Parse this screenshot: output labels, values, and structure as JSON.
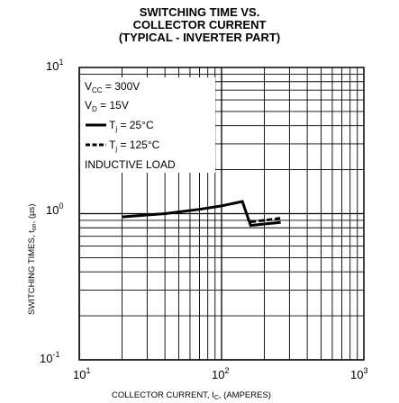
{
  "title_lines": [
    "SWITCHING TIME VS.",
    "COLLECTOR CURRENT",
    "(TYPICAL - INVERTER PART)"
  ],
  "chart_data": {
    "type": "line",
    "x_scale": "log",
    "y_scale": "log",
    "xlim": [
      10,
      1000
    ],
    "ylim": [
      0.1,
      10
    ],
    "grid": true,
    "xlabel": {
      "main": "COLLECTOR CURRENT, I",
      "sub": "C",
      "suffix": ", (AMPERES)"
    },
    "ylabel": {
      "main": "SWITCHING TIMES, t",
      "sub": "on",
      "suffix": ", (µs)"
    },
    "x_ticks": [
      {
        "value": 10,
        "base": "10",
        "exp": "1"
      },
      {
        "value": 100,
        "base": "10",
        "exp": "2"
      },
      {
        "value": 1000,
        "base": "10",
        "exp": "3"
      }
    ],
    "y_ticks": [
      {
        "value": 10,
        "base": "10",
        "exp": "1"
      },
      {
        "value": 1,
        "base": "10",
        "exp": "0"
      },
      {
        "value": 0.1,
        "base": "10",
        "exp": "-1"
      }
    ],
    "legend": {
      "vcc": {
        "pre": "V",
        "sub": "CC",
        "post": " = 300V"
      },
      "vd": {
        "pre": "V",
        "sub": "D",
        "post": " = 15V"
      },
      "series1": {
        "pre": "T",
        "sub": "j",
        "post": " = 25°C"
      },
      "series2": {
        "pre": "T",
        "sub": "j",
        "post": " = 125°C"
      },
      "note": "INDUCTIVE LOAD"
    },
    "series": [
      {
        "style": "solid",
        "points": [
          [
            20,
            0.95
          ],
          [
            40,
            1.0
          ],
          [
            70,
            1.07
          ],
          [
            100,
            1.13
          ],
          [
            140,
            1.21
          ],
          [
            160,
            0.83
          ],
          [
            200,
            0.85
          ],
          [
            260,
            0.87
          ]
        ]
      },
      {
        "style": "dashed",
        "points": [
          [
            160,
            0.88
          ],
          [
            200,
            0.9
          ],
          [
            260,
            0.93
          ]
        ]
      }
    ]
  }
}
